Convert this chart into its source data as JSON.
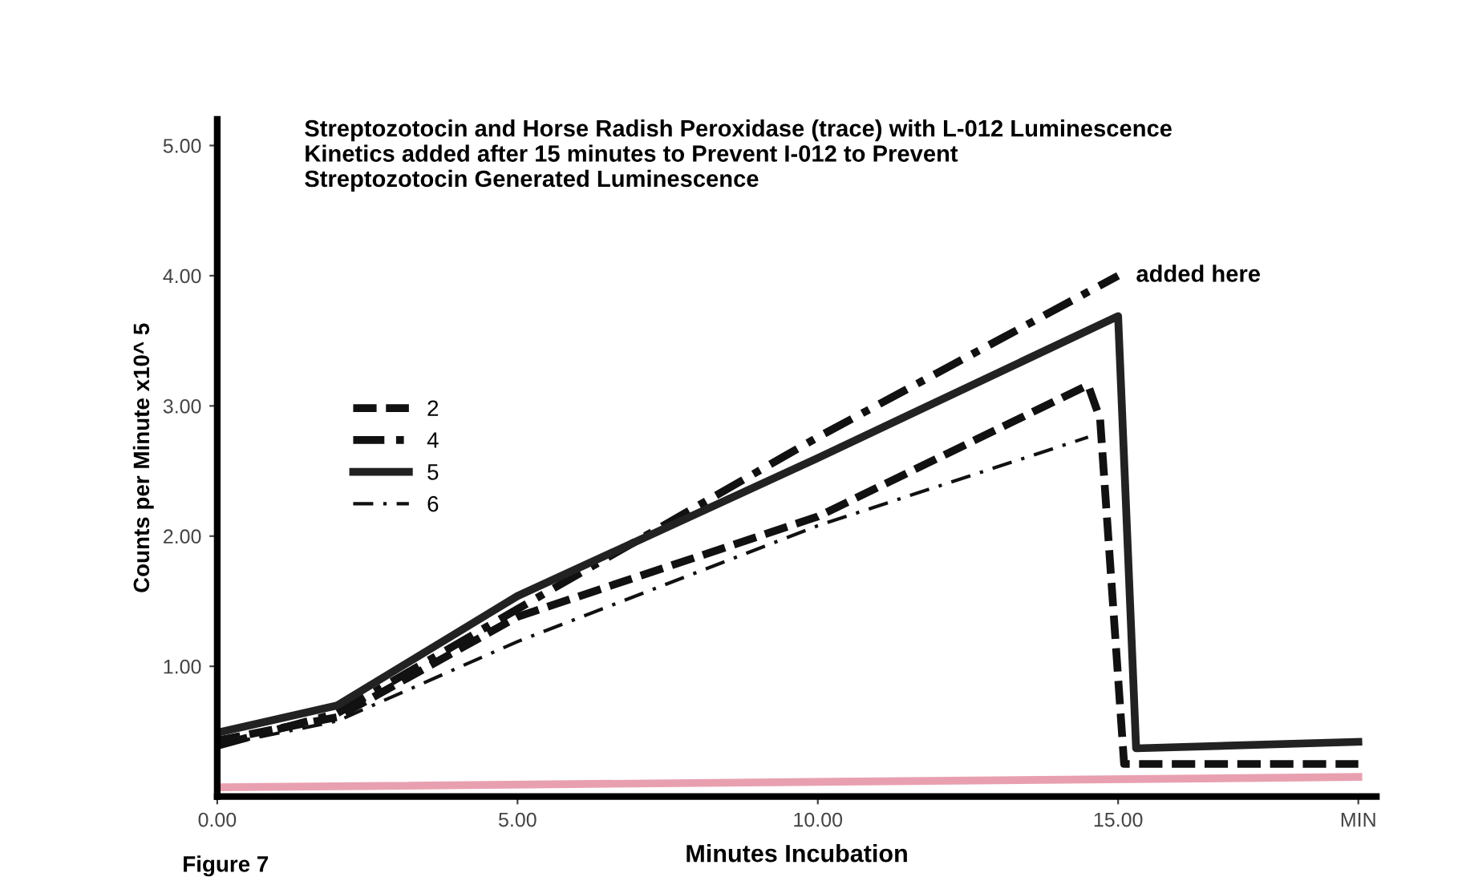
{
  "chart_data": {
    "type": "line",
    "title": "Streptozotocin and Horse Radish Peroxidase (trace) with L-012 Luminescence\nKinetics added after 15 minutes to Prevent I-012 to Prevent\nStreptozotocin Generated Luminescence",
    "xlabel": "Minutes Incubation",
    "ylabel": "Counts per Minute x10^ 5",
    "xlim": [
      0,
      19.3
    ],
    "ylim": [
      0,
      5.2
    ],
    "xticks": [
      {
        "value": 0,
        "label": "0.00"
      },
      {
        "value": 5,
        "label": "5.00"
      },
      {
        "value": 10,
        "label": "10.00"
      },
      {
        "value": 15,
        "label": "15.00"
      },
      {
        "value": 19,
        "label": "MIN"
      }
    ],
    "yticks": [
      {
        "value": 1,
        "label": "1.00"
      },
      {
        "value": 2,
        "label": "2.00"
      },
      {
        "value": 3,
        "label": "3.00"
      },
      {
        "value": 4,
        "label": "4.00"
      },
      {
        "value": 5,
        "label": "5.00"
      }
    ],
    "grid": false,
    "legend": "center left",
    "marker": "none",
    "series": [
      {
        "name": "2",
        "color": "#111111",
        "line_style": "dashed",
        "x": [
          0,
          2,
          5,
          10,
          14.5,
          14.7,
          15.1,
          19
        ],
        "values": [
          0.43,
          0.61,
          1.38,
          2.15,
          3.16,
          2.9,
          0.25,
          0.25
        ]
      },
      {
        "name": "4",
        "color": "#111111",
        "line_style": "dashdot",
        "x": [
          0,
          2,
          5,
          10,
          15
        ],
        "values": [
          0.39,
          0.64,
          1.44,
          2.76,
          4.0
        ]
      },
      {
        "name": "5",
        "color": "#222222",
        "line_style": "solid",
        "x": [
          0,
          2,
          5,
          10,
          15,
          15.3,
          19
        ],
        "values": [
          0.49,
          0.7,
          1.54,
          2.6,
          3.69,
          0.37,
          0.42
        ]
      },
      {
        "name": "6",
        "color": "#111111",
        "line_style": "thin_dashdot",
        "x": [
          0,
          2,
          5,
          10,
          14.5
        ],
        "values": [
          0.39,
          0.58,
          1.19,
          2.08,
          2.76
        ]
      },
      {
        "color": "#e8a0b0",
        "line_style": "solid",
        "x": [
          0,
          19
        ],
        "values": [
          0.07,
          0.15
        ]
      }
    ],
    "annotations": [
      {
        "text": "added here",
        "x": 15,
        "y": 4.0
      },
      "Figure 7"
    ]
  }
}
